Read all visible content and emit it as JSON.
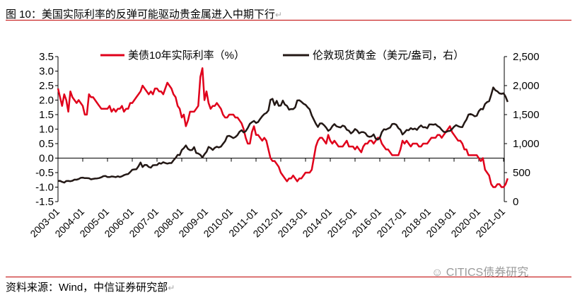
{
  "title": "图 10：美国实际利率的反弹可能驱动贵金属进入中期下行",
  "source": "资料来源：Wind，中信证券研究部",
  "watermark": "CITICS债券研究",
  "return_mark": "↵",
  "chart_data": {
    "type": "line",
    "title": "",
    "xlabel": "",
    "ylabel": "",
    "x_ticks": [
      "2003-01",
      "2004-01",
      "2005-01",
      "2006-01",
      "2007-01",
      "2008-01",
      "2009-01",
      "2010-01",
      "2011-01",
      "2012-01",
      "2013-01",
      "2014-01",
      "2015-01",
      "2016-01",
      "2017-01",
      "2018-01",
      "2019-01",
      "2020-01",
      "2021-01"
    ],
    "y_left": {
      "ticks": [
        "3.5",
        "3.0",
        "2.5",
        "2.0",
        "1.5",
        "1.0",
        "0.5",
        "0.0",
        "-0.5",
        "-1.0",
        "-1.5"
      ],
      "range": [
        -1.5,
        3.5
      ]
    },
    "y_right": {
      "ticks": [
        "2,500",
        "2,000",
        "1,500",
        "1,000",
        "500",
        "0"
      ],
      "range": [
        0,
        2500
      ]
    },
    "legend_position": "top",
    "grid": false,
    "series": [
      {
        "name": "美债10年实际利率（%）",
        "axis": "left",
        "color": "#e0001b",
        "monthly_values_by_year": {
          "2003": [
            2.4,
            2.1,
            1.8,
            2.2,
            2.0,
            1.6,
            2.3,
            2.1,
            2.0,
            1.9,
            2.0,
            1.9
          ],
          "2004": [
            1.8,
            1.5,
            1.5,
            2.2,
            2.1,
            2.1,
            2.0,
            1.9,
            1.8,
            1.7,
            1.7,
            1.7
          ],
          "2005": [
            1.7,
            1.8,
            1.6,
            1.7,
            1.6,
            1.7,
            1.7,
            1.8,
            1.6,
            1.7,
            1.7,
            1.9
          ],
          "2006": [
            1.9,
            2.0,
            2.1,
            2.2,
            2.3,
            2.5,
            2.4,
            2.3,
            2.2,
            2.3,
            2.2,
            2.4
          ],
          "2007": [
            2.4,
            2.3,
            2.3,
            2.2,
            2.4,
            2.6,
            2.5,
            2.4,
            2.2,
            2.1,
            1.8,
            1.7
          ],
          "2008": [
            1.4,
            1.5,
            1.1,
            1.3,
            1.6,
            1.6,
            1.6,
            1.7,
            1.8,
            2.8,
            3.1,
            2.0
          ],
          "2009": [
            2.3,
            1.9,
            1.7,
            1.8,
            1.8,
            1.9,
            1.8,
            1.7,
            1.5,
            1.4,
            1.4,
            1.5
          ],
          "2010": [
            1.5,
            1.5,
            1.4,
            1.4,
            1.3,
            1.2,
            1.0,
            0.7,
            0.5,
            0.5,
            0.9,
            1.1
          ],
          "2011": [
            0.8,
            0.8,
            0.7,
            0.6,
            0.7,
            0.6,
            0.3,
            0.0,
            -0.1,
            -0.1,
            -0.2,
            -0.3
          ],
          "2012": [
            -0.5,
            -0.6,
            -0.7,
            -0.8,
            -0.7,
            -0.7,
            -0.6,
            -0.7,
            -0.8,
            -0.7,
            -0.7,
            -0.6
          ],
          "2013": [
            -0.5,
            -0.5,
            -0.5,
            -0.4,
            0.0,
            0.4,
            0.6,
            0.7,
            0.7,
            0.6,
            0.5,
            0.8
          ],
          "2014": [
            0.6,
            0.5,
            0.6,
            0.5,
            0.4,
            0.4,
            0.4,
            0.5,
            0.6,
            0.4,
            0.4,
            0.4
          ],
          "2015": [
            0.3,
            0.4,
            0.3,
            0.2,
            0.4,
            0.5,
            0.5,
            0.6,
            0.6,
            0.5,
            0.6,
            0.7
          ],
          "2016": [
            0.7,
            0.5,
            0.4,
            0.3,
            0.3,
            0.2,
            0.1,
            0.1,
            0.1,
            0.1,
            0.3,
            0.6
          ],
          "2017": [
            0.5,
            0.6,
            0.5,
            0.4,
            0.5,
            0.5,
            0.5,
            0.4,
            0.4,
            0.5,
            0.5,
            0.5
          ],
          "2018": [
            0.6,
            0.7,
            0.7,
            0.7,
            0.8,
            0.8,
            0.7,
            0.8,
            0.9,
            1.0,
            1.1,
            0.9
          ],
          "2019": [
            0.8,
            0.7,
            0.6,
            0.6,
            0.5,
            0.3,
            0.3,
            0.1,
            0.1,
            0.1,
            0.1,
            0.1
          ],
          "2020": [
            0.0,
            -0.1,
            0.0,
            -0.4,
            -0.5,
            -0.6,
            -0.9,
            -1.0,
            -1.0,
            -0.9,
            -0.9,
            -1.0
          ],
          "2021": [
            -1.0,
            -0.9,
            -0.7
          ]
        }
      },
      {
        "name": "伦敦现货黄金（美元/盎司，右）",
        "axis": "right",
        "color": "#231815",
        "monthly_values_by_year": {
          "2003": [
            356,
            359,
            340,
            328,
            355,
            356,
            351,
            360,
            379,
            378,
            389,
            410
          ],
          "2004": [
            414,
            405,
            406,
            403,
            384,
            392,
            398,
            400,
            406,
            420,
            439,
            441
          ],
          "2005": [
            424,
            423,
            434,
            429,
            422,
            437,
            425,
            437,
            456,
            469,
            476,
            510
          ],
          "2006": [
            549,
            555,
            557,
            610,
            675,
            596,
            633,
            632,
            598,
            585,
            627,
            629
          ],
          "2007": [
            631,
            665,
            654,
            679,
            666,
            655,
            665,
            665,
            712,
            754,
            806,
            803
          ],
          "2008": [
            889,
            922,
            968,
            909,
            888,
            890,
            939,
            839,
            829,
            806,
            760,
            816
          ],
          "2009": [
            858,
            943,
            924,
            890,
            928,
            946,
            934,
            949,
            996,
            1043,
            1127,
            1134
          ],
          "2010": [
            1117,
            1095,
            1113,
            1148,
            1205,
            1232,
            1193,
            1215,
            1270,
            1342,
            1370,
            1391
          ],
          "2011": [
            1356,
            1372,
            1424,
            1473,
            1510,
            1528,
            1572,
            1755,
            1772,
            1665,
            1738,
            1652
          ],
          "2012": [
            1656,
            1742,
            1673,
            1650,
            1585,
            1596,
            1594,
            1626,
            1744,
            1747,
            1721,
            1688
          ],
          "2013": [
            1670,
            1627,
            1592,
            1485,
            1414,
            1343,
            1286,
            1347,
            1349,
            1316,
            1275,
            1221
          ],
          "2014": [
            1244,
            1300,
            1336,
            1299,
            1287,
            1279,
            1311,
            1296,
            1239,
            1222,
            1176,
            1202
          ],
          "2015": [
            1251,
            1227,
            1178,
            1198,
            1199,
            1181,
            1131,
            1117,
            1125,
            1159,
            1086,
            1068
          ],
          "2016": [
            1097,
            1199,
            1246,
            1242,
            1260,
            1276,
            1337,
            1341,
            1326,
            1266,
            1238,
            1157
          ],
          "2017": [
            1192,
            1234,
            1231,
            1267,
            1246,
            1260,
            1236,
            1283,
            1314,
            1280,
            1283,
            1265
          ],
          "2018": [
            1331,
            1331,
            1325,
            1335,
            1303,
            1282,
            1238,
            1202,
            1198,
            1215,
            1220,
            1250
          ],
          "2019": [
            1291,
            1320,
            1300,
            1286,
            1284,
            1359,
            1413,
            1500,
            1510,
            1495,
            1471,
            1480
          ],
          "2020": [
            1560,
            1597,
            1591,
            1683,
            1716,
            1732,
            1840,
            1968,
            1921,
            1900,
            1866,
            1858
          ],
          "2021": [
            1867,
            1808,
            1718
          ]
        }
      }
    ]
  }
}
